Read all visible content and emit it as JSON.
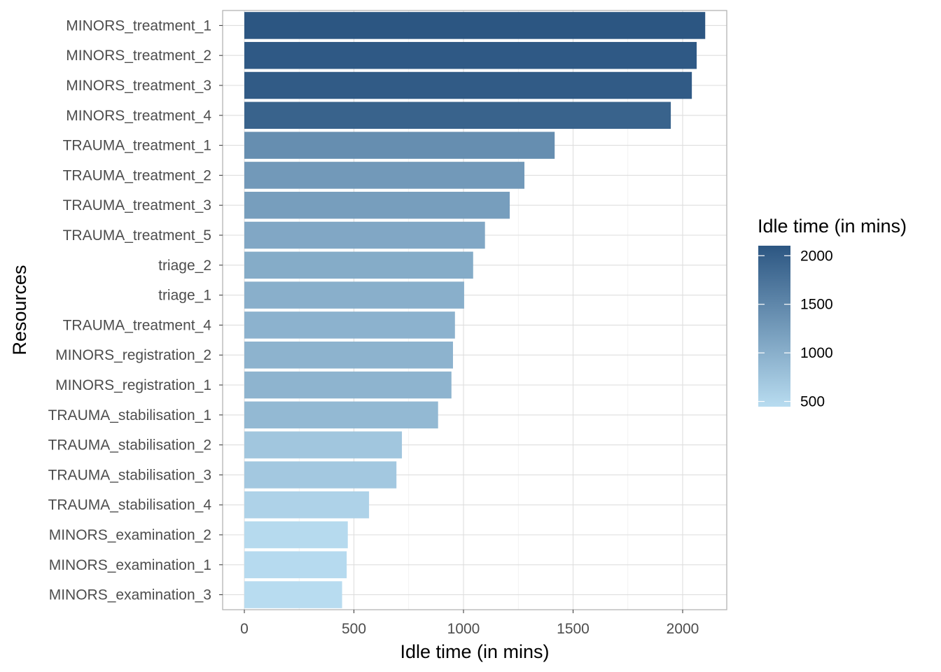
{
  "chart_data": {
    "type": "bar",
    "orientation": "horizontal",
    "title": "",
    "xlabel": "Idle time (in mins)",
    "ylabel": "Resources",
    "xlim": [
      0,
      2200
    ],
    "x_ticks": [
      0,
      500,
      1000,
      1500,
      2000
    ],
    "categories": [
      "MINORS_treatment_1",
      "MINORS_treatment_2",
      "MINORS_treatment_3",
      "MINORS_treatment_4",
      "TRAUMA_treatment_1",
      "TRAUMA_treatment_2",
      "TRAUMA_treatment_3",
      "TRAUMA_treatment_5",
      "triage_2",
      "triage_1",
      "TRAUMA_treatment_4",
      "MINORS_registration_2",
      "MINORS_registration_1",
      "TRAUMA_stabilisation_1",
      "TRAUMA_stabilisation_2",
      "TRAUMA_stabilisation_3",
      "TRAUMA_stabilisation_4",
      "MINORS_examination_2",
      "MINORS_examination_1",
      "MINORS_examination_3"
    ],
    "values": [
      2103,
      2064,
      2042,
      1946,
      1416,
      1278,
      1211,
      1098,
      1044,
      1003,
      961,
      952,
      945,
      884,
      719,
      694,
      569,
      472,
      467,
      446
    ],
    "grid": true,
    "legend": {
      "title": "Idle time (in mins)",
      "type": "colorbar",
      "placement": "right",
      "ticks": [
        500,
        1000,
        1500,
        2000
      ],
      "range": [
        446,
        2103
      ],
      "color_low": "#b8dcf0",
      "color_high": "#2c5682"
    }
  }
}
